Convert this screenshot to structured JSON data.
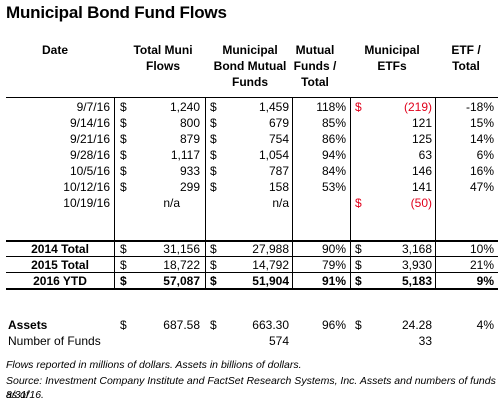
{
  "title": "Municipal Bond Fund Flows",
  "headers": {
    "date": "Date",
    "total": [
      "Total Muni",
      "Flows"
    ],
    "mutual": [
      "Municipal",
      "Bond Mutual",
      "Funds"
    ],
    "mutual_pct": [
      "Mutual",
      "Funds /",
      "Total"
    ],
    "etfs": [
      "Municipal",
      "ETFs"
    ],
    "etf_pct": [
      "ETF /",
      "Total"
    ]
  },
  "currency": "$",
  "weekly_rows": [
    {
      "date": "9/7/16",
      "total": "1,240",
      "mutual": "1,459",
      "mutual_pct": "118%",
      "etf": "(219)",
      "etf_pct": "-18%",
      "etf_red": true
    },
    {
      "date": "9/14/16",
      "total": "800",
      "mutual": "679",
      "mutual_pct": "85%",
      "etf": "121",
      "etf_pct": "15%"
    },
    {
      "date": "9/21/16",
      "total": "879",
      "mutual": "754",
      "mutual_pct": "86%",
      "etf": "125",
      "etf_pct": "14%"
    },
    {
      "date": "9/28/16",
      "total": "1,117",
      "mutual": "1,054",
      "mutual_pct": "94%",
      "etf": "63",
      "etf_pct": "6%"
    },
    {
      "date": "10/5/16",
      "total": "933",
      "mutual": "787",
      "mutual_pct": "84%",
      "etf": "146",
      "etf_pct": "16%"
    },
    {
      "date": "10/12/16",
      "total": "299",
      "mutual": "158",
      "mutual_pct": "53%",
      "etf": "141",
      "etf_pct": "47%"
    },
    {
      "date": "10/19/16",
      "total": "n/a",
      "mutual": "n/a",
      "mutual_pct": "",
      "etf": "(50)",
      "etf_pct": "",
      "etf_red": true
    }
  ],
  "summary_rows": [
    {
      "label": "2014 Total",
      "total": "31,156",
      "mutual": "27,988",
      "mutual_pct": "90%",
      "etf": "3,168",
      "etf_pct": "10%"
    },
    {
      "label": "2015 Total",
      "total": "18,722",
      "mutual": "14,792",
      "mutual_pct": "79%",
      "etf": "3,930",
      "etf_pct": "21%"
    },
    {
      "label": "2016 YTD",
      "total": "57,087",
      "mutual": "51,904",
      "mutual_pct": "91%",
      "etf": "5,183",
      "etf_pct": "9%"
    }
  ],
  "assets": {
    "label": "Assets",
    "total": "687.58",
    "mutual": "663.30",
    "mutual_pct": "96%",
    "etf": "24.28",
    "etf_pct": "4%"
  },
  "funds": {
    "label": "Number of Funds",
    "mutual": "574",
    "etf": "33"
  },
  "notes": [
    "Flows reported in millions of dollars. Assets in billions of dollars.",
    "Source: Investment Company Institute and FactSet Research Systems, Inc. Assets and numbers of funds as of",
    "8/31/16."
  ]
}
